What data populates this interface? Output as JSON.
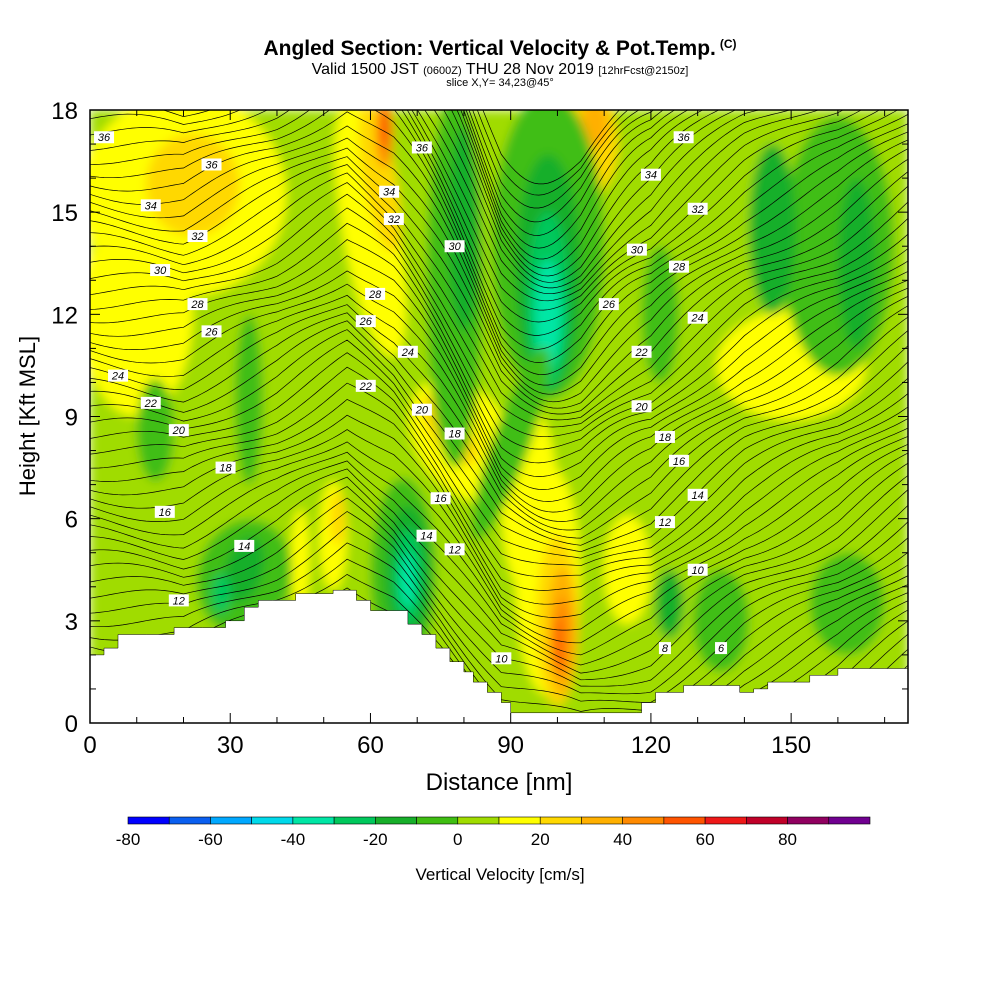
{
  "header": {
    "title": "Angled Section: Vertical Velocity & Pot.Temp.",
    "title_suffix": "(C)",
    "valid_prefix": "Valid 1500 JST",
    "valid_utc": "(0600Z)",
    "valid_date": "THU 28 Nov 2019",
    "forecast": "[12hrFcst@2150z]",
    "slice": "slice X,Y= 34,23@45°"
  },
  "chart_data": {
    "type": "heatmap",
    "xlabel": "Distance [nm]",
    "ylabel": "Height [Kft MSL]",
    "xlim": [
      0,
      175
    ],
    "ylim": [
      0,
      18
    ],
    "x_ticks": [
      0,
      30,
      60,
      90,
      120,
      150
    ],
    "y_ticks": [
      0,
      3,
      6,
      9,
      12,
      15,
      18
    ],
    "colorbar": {
      "label": "Vertical Velocity [cm/s]",
      "ticks": [
        -80,
        -60,
        -40,
        -20,
        0,
        20,
        40,
        60,
        80
      ],
      "levels": [
        -80,
        -70,
        -60,
        -50,
        -40,
        -30,
        -20,
        -10,
        0,
        10,
        20,
        30,
        40,
        50,
        60,
        70,
        80,
        90
      ],
      "colors": [
        "#0000ff",
        "#0a5ff0",
        "#00a8ff",
        "#00d9ea",
        "#00e6a5",
        "#00c85c",
        "#17af2a",
        "#3fbe12",
        "#a0dc00",
        "#ffff00",
        "#ffd800",
        "#ffb000",
        "#ff8a00",
        "#ff5400",
        "#ee1818",
        "#c00028",
        "#900060",
        "#700090"
      ]
    },
    "terrain": [
      [
        0,
        2
      ],
      [
        3,
        2
      ],
      [
        3,
        2.2
      ],
      [
        6,
        2.2
      ],
      [
        6,
        2.6
      ],
      [
        12,
        2.6
      ],
      [
        18,
        2.6
      ],
      [
        18,
        2.8
      ],
      [
        24,
        2.8
      ],
      [
        29,
        2.8
      ],
      [
        29,
        3
      ],
      [
        33,
        3
      ],
      [
        33,
        3.4
      ],
      [
        36,
        3.4
      ],
      [
        36,
        3.6
      ],
      [
        39,
        3.6
      ],
      [
        44,
        3.6
      ],
      [
        44,
        3.8
      ],
      [
        52,
        3.8
      ],
      [
        52,
        3.9
      ],
      [
        57,
        3.9
      ],
      [
        57,
        3.6
      ],
      [
        60,
        3.6
      ],
      [
        60,
        3.3
      ],
      [
        68,
        3.3
      ],
      [
        68,
        2.9
      ],
      [
        71,
        2.9
      ],
      [
        71,
        2.6
      ],
      [
        74,
        2.6
      ],
      [
        74,
        2.2
      ],
      [
        77,
        2.2
      ],
      [
        77,
        1.8
      ],
      [
        80,
        1.8
      ],
      [
        80,
        1.5
      ],
      [
        82,
        1.5
      ],
      [
        82,
        1.2
      ],
      [
        85,
        1.2
      ],
      [
        85,
        0.9
      ],
      [
        88,
        0.9
      ],
      [
        88,
        0.6
      ],
      [
        90,
        0.6
      ],
      [
        90,
        0.3
      ],
      [
        117,
        0.3
      ],
      [
        118,
        0.3
      ],
      [
        118,
        0.6
      ],
      [
        121,
        0.6
      ],
      [
        121,
        0.9
      ],
      [
        127,
        0.9
      ],
      [
        127,
        1.1
      ],
      [
        139,
        1.1
      ],
      [
        139,
        0.9
      ],
      [
        142,
        0.9
      ],
      [
        142,
        1.0
      ],
      [
        145,
        1.0
      ],
      [
        145,
        1.2
      ],
      [
        154,
        1.2
      ],
      [
        154,
        1.4
      ],
      [
        160,
        1.4
      ],
      [
        160,
        1.6
      ],
      [
        170,
        1.6
      ],
      [
        175,
        1.6
      ]
    ],
    "contour_levels": [
      6,
      8,
      10,
      12,
      14,
      16,
      18,
      20,
      22,
      24,
      26,
      28,
      30,
      32,
      34,
      36
    ],
    "contour_labels": [
      {
        "value": 36,
        "x": 3,
        "y": 17.2
      },
      {
        "value": 36,
        "x": 26,
        "y": 16.4
      },
      {
        "value": 34,
        "x": 13,
        "y": 15.2
      },
      {
        "value": 32,
        "x": 23,
        "y": 14.3
      },
      {
        "value": 30,
        "x": 15,
        "y": 13.3
      },
      {
        "value": 28,
        "x": 23,
        "y": 12.3
      },
      {
        "value": 26,
        "x": 26,
        "y": 11.5
      },
      {
        "value": 24,
        "x": 6,
        "y": 10.2
      },
      {
        "value": 22,
        "x": 13,
        "y": 9.4
      },
      {
        "value": 20,
        "x": 19,
        "y": 8.6
      },
      {
        "value": 18,
        "x": 29,
        "y": 7.5
      },
      {
        "value": 16,
        "x": 16,
        "y": 6.2
      },
      {
        "value": 14,
        "x": 33,
        "y": 5.2
      },
      {
        "value": 12,
        "x": 19,
        "y": 3.6
      },
      {
        "value": 36,
        "x": 71,
        "y": 16.9
      },
      {
        "value": 34,
        "x": 64,
        "y": 15.6
      },
      {
        "value": 32,
        "x": 65,
        "y": 14.8
      },
      {
        "value": 30,
        "x": 78,
        "y": 14.0
      },
      {
        "value": 28,
        "x": 61,
        "y": 12.6
      },
      {
        "value": 26,
        "x": 59,
        "y": 11.8
      },
      {
        "value": 24,
        "x": 68,
        "y": 10.9
      },
      {
        "value": 22,
        "x": 59,
        "y": 9.9
      },
      {
        "value": 20,
        "x": 71,
        "y": 9.2
      },
      {
        "value": 18,
        "x": 78,
        "y": 8.5
      },
      {
        "value": 16,
        "x": 75,
        "y": 6.6
      },
      {
        "value": 14,
        "x": 72,
        "y": 5.5
      },
      {
        "value": 12,
        "x": 78,
        "y": 5.1
      },
      {
        "value": 10,
        "x": 88,
        "y": 1.9
      },
      {
        "value": 36,
        "x": 127,
        "y": 17.2
      },
      {
        "value": 34,
        "x": 120,
        "y": 16.1
      },
      {
        "value": 32,
        "x": 130,
        "y": 15.1
      },
      {
        "value": 30,
        "x": 117,
        "y": 13.9
      },
      {
        "value": 28,
        "x": 126,
        "y": 13.4
      },
      {
        "value": 26,
        "x": 111,
        "y": 12.3
      },
      {
        "value": 24,
        "x": 130,
        "y": 11.9
      },
      {
        "value": 22,
        "x": 118,
        "y": 10.9
      },
      {
        "value": 20,
        "x": 118,
        "y": 9.3
      },
      {
        "value": 18,
        "x": 123,
        "y": 8.4
      },
      {
        "value": 16,
        "x": 126,
        "y": 7.7
      },
      {
        "value": 14,
        "x": 130,
        "y": 6.7
      },
      {
        "value": 12,
        "x": 123,
        "y": 5.9
      },
      {
        "value": 10,
        "x": 130,
        "y": 4.5
      },
      {
        "value": 8,
        "x": 123,
        "y": 2.2
      },
      {
        "value": 6,
        "x": 135,
        "y": 2.2
      }
    ]
  }
}
